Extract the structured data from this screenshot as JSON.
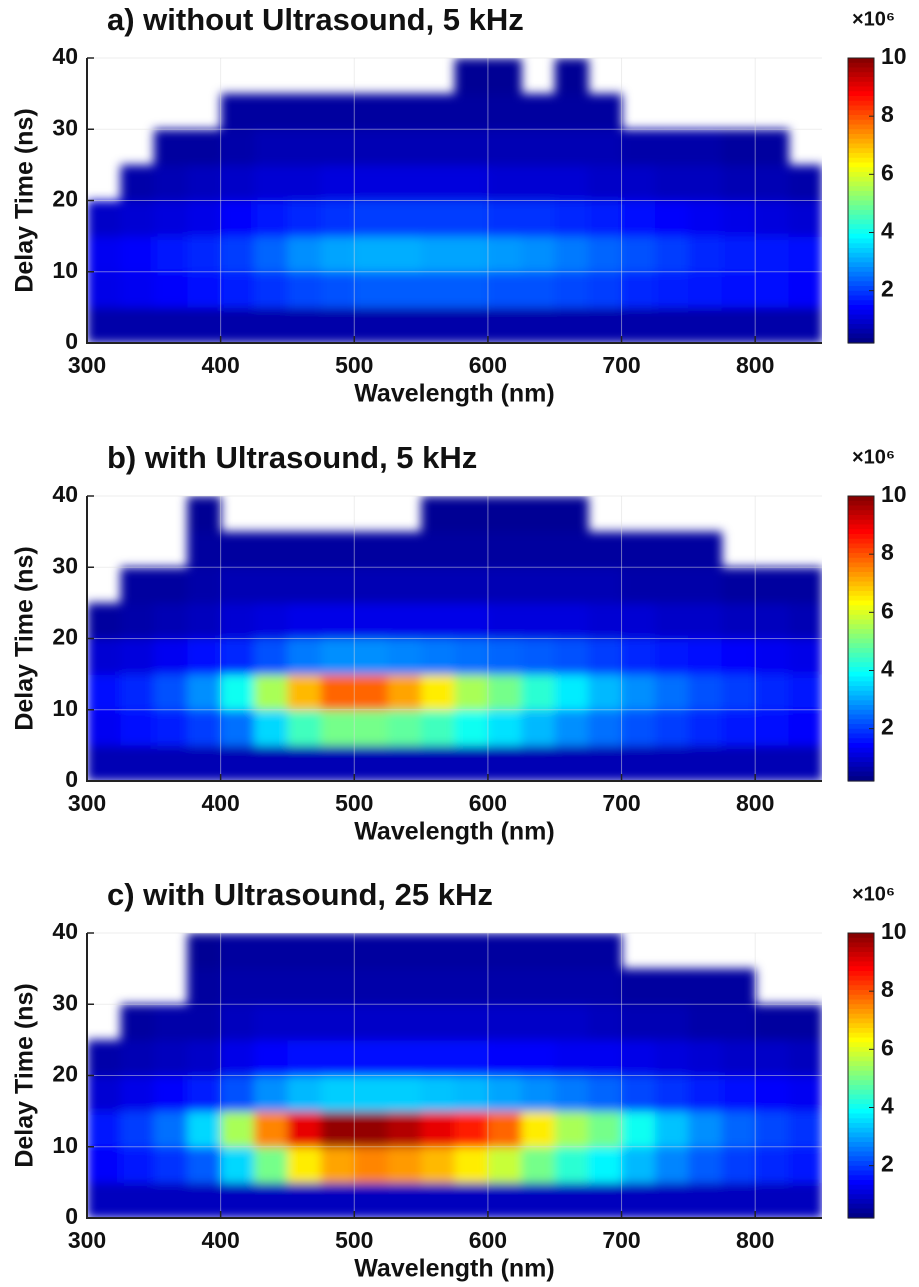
{
  "chart_data": [
    {
      "type": "heatmap",
      "title": "a) without Ultrasound, 5 kHz",
      "x_label": "Wavelength (nm)",
      "y_label": "Delay Time (ns)",
      "colorbar_label": "×10⁶",
      "xlim": [
        300,
        850
      ],
      "xticks": [
        300,
        400,
        500,
        600,
        700,
        800
      ],
      "ylim": [
        0,
        40
      ],
      "yticks": [
        0,
        10,
        20,
        30,
        40
      ],
      "grid": true,
      "colormap": "jet",
      "clim": [
        0.2,
        10
      ],
      "cticks": [
        2,
        4,
        6,
        8,
        10
      ],
      "x_bins": [
        300,
        325,
        350,
        375,
        400,
        425,
        450,
        475,
        500,
        525,
        550,
        575,
        600,
        625,
        650,
        675,
        700,
        725,
        750,
        775,
        800,
        825,
        850
      ],
      "y_bins": [
        0,
        5,
        10,
        15,
        20,
        25,
        30,
        35,
        40
      ],
      "z": [
        [
          0.6,
          0.6,
          0.6,
          0.6,
          0.6,
          0.6,
          0.6,
          0.6,
          0.6,
          0.6,
          0.6,
          0.6,
          0.6,
          0.6,
          0.6,
          0.6,
          0.6,
          0.6,
          0.6,
          0.6,
          0.6,
          0.6
        ],
        [
          1.2,
          1.3,
          1.4,
          1.5,
          1.7,
          1.9,
          2.1,
          2.2,
          2.3,
          2.3,
          2.3,
          2.3,
          2.2,
          2.2,
          2.1,
          2.0,
          1.8,
          1.7,
          1.6,
          1.5,
          1.5,
          1.4
        ],
        [
          1.3,
          1.4,
          1.6,
          1.8,
          2.0,
          2.4,
          2.8,
          3.0,
          3.1,
          3.1,
          3.0,
          3.0,
          2.9,
          2.8,
          2.6,
          2.4,
          2.2,
          2.0,
          1.8,
          1.7,
          1.6,
          1.5
        ],
        [
          0.9,
          1.0,
          1.1,
          1.2,
          1.4,
          1.6,
          1.8,
          1.9,
          2.0,
          2.0,
          2.0,
          2.0,
          1.9,
          1.9,
          1.8,
          1.7,
          1.5,
          1.4,
          1.3,
          1.2,
          1.1,
          1.0
        ],
        [
          null,
          0.6,
          0.7,
          0.8,
          0.9,
          1.0,
          1.0,
          1.1,
          1.1,
          1.1,
          1.1,
          1.1,
          1.0,
          1.0,
          1.0,
          0.9,
          0.9,
          0.8,
          0.8,
          0.7,
          0.7,
          0.6
        ],
        [
          null,
          null,
          0.5,
          0.5,
          0.6,
          0.7,
          0.7,
          0.7,
          0.7,
          0.7,
          0.7,
          0.7,
          0.7,
          0.7,
          0.7,
          0.7,
          0.6,
          0.6,
          0.6,
          0.5,
          0.5,
          null
        ],
        [
          null,
          null,
          null,
          null,
          0.5,
          0.5,
          0.5,
          0.5,
          0.5,
          0.5,
          0.5,
          0.5,
          0.5,
          0.5,
          0.5,
          0.5,
          null,
          null,
          null,
          null,
          null,
          null
        ],
        [
          null,
          null,
          null,
          null,
          null,
          null,
          null,
          null,
          null,
          null,
          null,
          0.4,
          0.4,
          null,
          0.4,
          null,
          null,
          null,
          null,
          null,
          null,
          null
        ]
      ]
    },
    {
      "type": "heatmap",
      "title": "b) with Ultrasound, 5 kHz",
      "x_label": "Wavelength (nm)",
      "y_label": "Delay Time (ns)",
      "colorbar_label": "×10⁶",
      "xlim": [
        300,
        850
      ],
      "xticks": [
        300,
        400,
        500,
        600,
        700,
        800
      ],
      "ylim": [
        0,
        40
      ],
      "yticks": [
        0,
        10,
        20,
        30,
        40
      ],
      "grid": true,
      "colormap": "jet",
      "clim": [
        0.2,
        10
      ],
      "cticks": [
        2,
        4,
        6,
        8,
        10
      ],
      "x_bins": [
        300,
        325,
        350,
        375,
        400,
        425,
        450,
        475,
        500,
        525,
        550,
        575,
        600,
        625,
        650,
        675,
        700,
        725,
        750,
        775,
        800,
        825,
        850
      ],
      "y_bins": [
        0,
        5,
        10,
        15,
        20,
        25,
        30,
        35,
        40
      ],
      "z": [
        [
          0.7,
          0.7,
          0.7,
          0.7,
          0.7,
          0.7,
          0.7,
          0.7,
          0.7,
          0.7,
          0.7,
          0.7,
          0.7,
          0.7,
          0.7,
          0.7,
          0.7,
          0.7,
          0.7,
          0.7,
          0.7,
          0.7
        ],
        [
          1.3,
          1.5,
          1.7,
          2.0,
          2.5,
          3.5,
          4.5,
          5.0,
          5.0,
          4.8,
          4.5,
          4.0,
          3.6,
          3.2,
          2.8,
          2.5,
          2.2,
          2.0,
          1.8,
          1.6,
          1.5,
          1.4
        ],
        [
          1.5,
          1.8,
          2.2,
          2.8,
          4.0,
          5.5,
          7.0,
          7.8,
          7.8,
          7.2,
          6.5,
          5.5,
          5.0,
          4.3,
          3.7,
          3.2,
          2.8,
          2.5,
          2.2,
          2.0,
          1.8,
          1.6
        ],
        [
          1.0,
          1.1,
          1.3,
          1.5,
          1.8,
          2.2,
          2.6,
          2.8,
          2.8,
          2.7,
          2.6,
          2.5,
          2.4,
          2.3,
          2.2,
          2.0,
          1.8,
          1.6,
          1.5,
          1.4,
          1.3,
          1.2
        ],
        [
          0.5,
          0.6,
          0.7,
          0.8,
          1.0,
          1.1,
          1.2,
          1.2,
          1.2,
          1.2,
          1.2,
          1.2,
          1.1,
          1.1,
          1.1,
          1.0,
          1.0,
          0.9,
          0.9,
          0.8,
          0.8,
          0.7
        ],
        [
          null,
          0.5,
          0.5,
          0.6,
          0.7,
          0.7,
          0.7,
          0.7,
          0.7,
          0.7,
          0.7,
          0.7,
          0.7,
          0.7,
          0.7,
          0.7,
          0.6,
          0.6,
          0.6,
          0.5,
          0.5,
          0.5
        ],
        [
          null,
          null,
          null,
          0.5,
          0.5,
          0.5,
          0.5,
          0.5,
          0.5,
          0.5,
          0.5,
          0.5,
          0.5,
          0.5,
          0.5,
          0.5,
          0.5,
          0.5,
          0.5,
          null,
          null,
          null
        ],
        [
          null,
          null,
          null,
          0.4,
          null,
          null,
          null,
          null,
          null,
          null,
          0.4,
          0.4,
          0.4,
          0.4,
          0.4,
          null,
          null,
          null,
          null,
          null,
          null,
          null
        ]
      ]
    },
    {
      "type": "heatmap",
      "title": "c) with Ultrasound, 25 kHz",
      "x_label": "Wavelength (nm)",
      "y_label": "Delay Time (ns)",
      "colorbar_label": "×10⁶",
      "xlim": [
        300,
        850
      ],
      "xticks": [
        300,
        400,
        500,
        600,
        700,
        800
      ],
      "ylim": [
        0,
        40
      ],
      "yticks": [
        0,
        10,
        20,
        30,
        40
      ],
      "grid": true,
      "colormap": "jet",
      "clim": [
        0.2,
        10
      ],
      "cticks": [
        2,
        4,
        6,
        8,
        10
      ],
      "x_bins": [
        300,
        325,
        350,
        375,
        400,
        425,
        450,
        475,
        500,
        525,
        550,
        575,
        600,
        625,
        650,
        675,
        700,
        725,
        750,
        775,
        800,
        825,
        850
      ],
      "y_bins": [
        0,
        5,
        10,
        15,
        20,
        25,
        30,
        35,
        40
      ],
      "z": [
        [
          0.8,
          0.8,
          0.8,
          0.8,
          0.8,
          0.8,
          0.8,
          0.8,
          0.8,
          0.8,
          0.8,
          0.8,
          0.8,
          0.8,
          0.8,
          0.8,
          0.8,
          0.8,
          0.8,
          0.8,
          0.8,
          0.8
        ],
        [
          1.4,
          1.6,
          1.9,
          2.3,
          3.5,
          5.0,
          6.5,
          7.2,
          7.5,
          7.3,
          7.0,
          6.5,
          5.8,
          5.0,
          4.3,
          3.8,
          3.2,
          2.7,
          2.3,
          2.0,
          1.8,
          1.6
        ],
        [
          1.6,
          2.0,
          2.5,
          3.5,
          5.5,
          7.5,
          9.0,
          9.8,
          9.8,
          9.5,
          9.0,
          8.5,
          7.8,
          6.5,
          5.5,
          5.0,
          4.0,
          3.3,
          2.8,
          2.4,
          2.1,
          1.9
        ],
        [
          1.0,
          1.2,
          1.4,
          1.7,
          2.2,
          2.8,
          3.2,
          3.4,
          3.4,
          3.4,
          3.3,
          3.2,
          3.0,
          2.8,
          2.6,
          2.4,
          2.1,
          1.9,
          1.7,
          1.5,
          1.4,
          1.3
        ],
        [
          0.6,
          0.7,
          0.8,
          0.9,
          1.2,
          1.4,
          1.5,
          1.5,
          1.5,
          1.5,
          1.5,
          1.5,
          1.4,
          1.4,
          1.3,
          1.3,
          1.2,
          1.1,
          1.0,
          0.9,
          0.9,
          0.8
        ],
        [
          null,
          0.5,
          0.6,
          0.6,
          0.8,
          0.9,
          0.9,
          0.9,
          0.9,
          0.9,
          0.9,
          0.9,
          0.9,
          0.9,
          0.9,
          0.8,
          0.7,
          0.7,
          0.6,
          0.6,
          0.5,
          0.5
        ],
        [
          null,
          null,
          null,
          0.5,
          0.6,
          0.6,
          0.6,
          0.6,
          0.6,
          0.6,
          0.6,
          0.6,
          0.6,
          0.6,
          0.6,
          0.6,
          0.5,
          0.5,
          0.5,
          0.5,
          null,
          null
        ],
        [
          null,
          null,
          null,
          0.4,
          0.5,
          0.5,
          0.5,
          0.5,
          0.5,
          0.5,
          0.5,
          0.5,
          0.5,
          0.5,
          0.5,
          0.5,
          null,
          null,
          null,
          null,
          null,
          null
        ]
      ]
    }
  ]
}
